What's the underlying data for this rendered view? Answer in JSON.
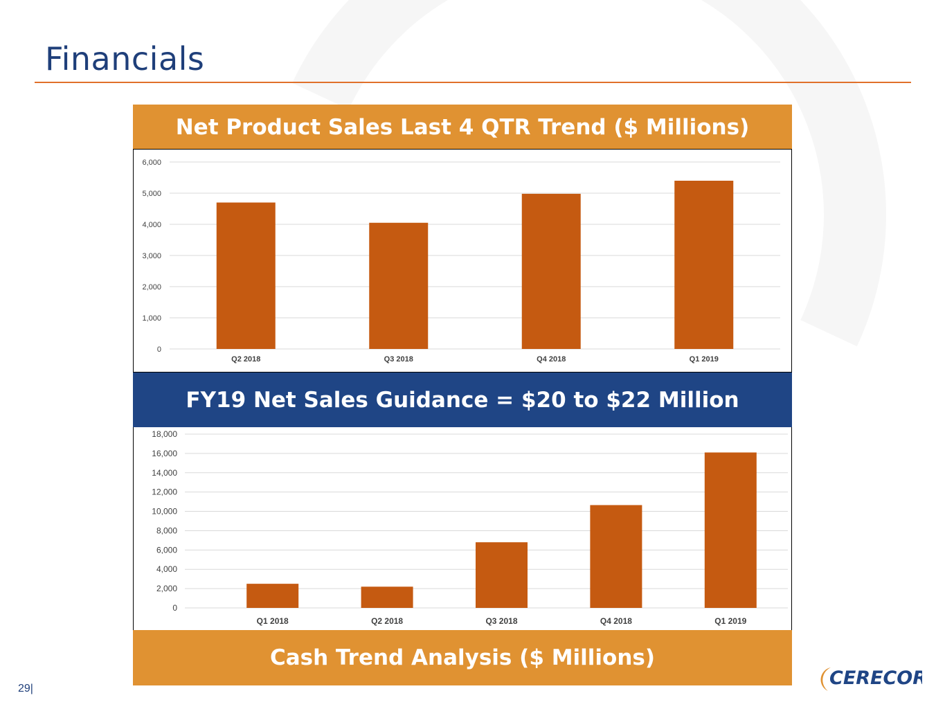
{
  "slide": {
    "title": "Financials",
    "page_number": "29|",
    "logo_text": "CERECOR"
  },
  "bands": {
    "top": "Net Product Sales Last 4 QTR Trend ($ Millions)",
    "middle": "FY19 Net Sales Guidance = $20 to $22 Million",
    "bottom": "Cash Trend Analysis ($ Millions)"
  },
  "colors": {
    "bar": "#c55a11",
    "orange_band": "#e09232",
    "blue_band": "#1f4585",
    "title": "#1f3f7a",
    "rule": "#e0702a"
  },
  "chart_data": [
    {
      "type": "bar",
      "categories": [
        "Q2 2018",
        "Q3 2018",
        "Q4 2018",
        "Q1 2019"
      ],
      "values": [
        4700,
        4050,
        4980,
        5400
      ],
      "ylim": [
        0,
        6000
      ],
      "yticks": [
        "0",
        "1,000",
        "2,000",
        "3,000",
        "4,000",
        "5,000",
        "6,000"
      ],
      "grid": true,
      "title": "",
      "xlabel": "",
      "ylabel": ""
    },
    {
      "type": "bar",
      "categories": [
        "Q1 2018",
        "Q2 2018",
        "Q3 2018",
        "Q4 2018",
        "Q1 2019"
      ],
      "values": [
        2500,
        2200,
        6800,
        10650,
        16100
      ],
      "ylim": [
        0,
        18000
      ],
      "yticks": [
        "0",
        "2,000",
        "4,000",
        "6,000",
        "8,000",
        "10,000",
        "12,000",
        "14,000",
        "16,000",
        "18,000"
      ],
      "grid": true,
      "title": "",
      "xlabel": "",
      "ylabel": ""
    }
  ]
}
